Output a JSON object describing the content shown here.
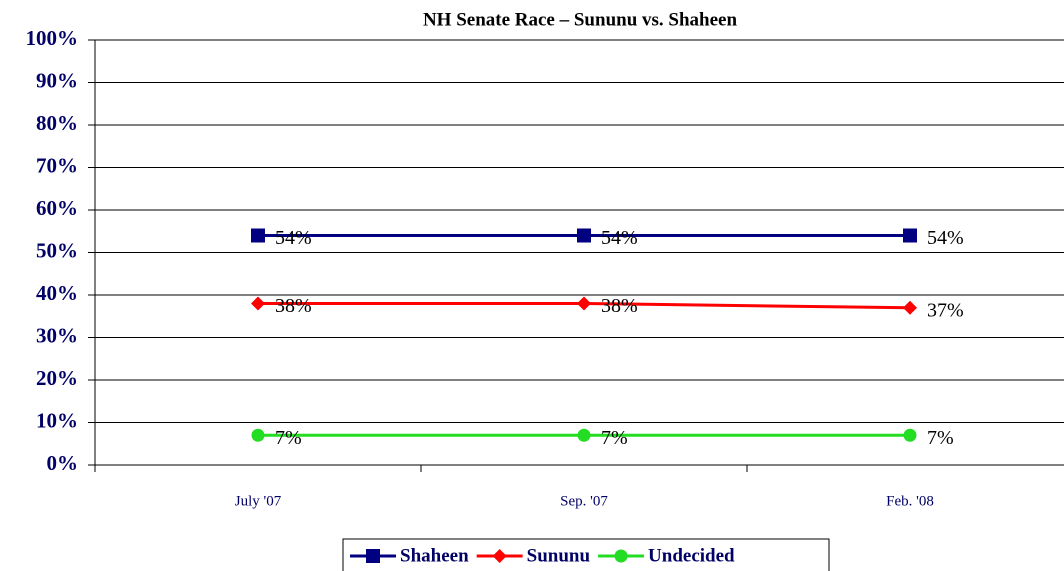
{
  "chart_data": {
    "type": "line",
    "title": "NH Senate Race – Sununu vs. Shaheen",
    "categories": [
      "July '07",
      "Sep. '07",
      "Feb. '08"
    ],
    "series": [
      {
        "name": "Shaheen",
        "color": "#000080",
        "marker": "square",
        "values": [
          54,
          54,
          54
        ],
        "value_labels": [
          "54%",
          "54%",
          "54%"
        ]
      },
      {
        "name": "Sununu",
        "color": "#ff0000",
        "marker": "diamond",
        "values": [
          38,
          38,
          37
        ],
        "value_labels": [
          "38%",
          "38%",
          "37%"
        ]
      },
      {
        "name": "Undecided",
        "color": "#22dd22",
        "marker": "circle",
        "values": [
          7,
          7,
          7
        ],
        "value_labels": [
          "7%",
          "7%",
          "7%"
        ]
      }
    ],
    "ylim": [
      0,
      100
    ],
    "yticks": [
      {
        "value": 0,
        "label": "0%"
      },
      {
        "value": 10,
        "label": "10%"
      },
      {
        "value": 20,
        "label": "20%"
      },
      {
        "value": 30,
        "label": "30%"
      },
      {
        "value": 40,
        "label": "40%"
      },
      {
        "value": 50,
        "label": "50%"
      },
      {
        "value": 60,
        "label": "60%"
      },
      {
        "value": 70,
        "label": "70%"
      },
      {
        "value": 80,
        "label": "80%"
      },
      {
        "value": 90,
        "label": "90%"
      },
      {
        "value": 100,
        "label": "100%"
      }
    ],
    "grid": true,
    "legend": "bottom"
  }
}
